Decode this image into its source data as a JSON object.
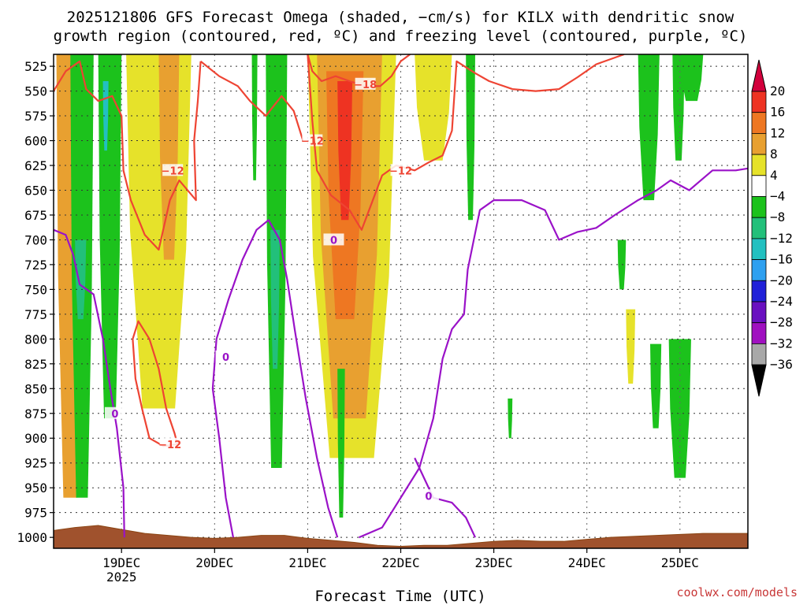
{
  "chart_data": {
    "type": "time-height",
    "title_line1": "2025121806 GFS Forecast Omega (shaded, −cm/s) for KILX with dendritic snow",
    "title_line2": "growth region (contoured, red, ºC) and freezing level (contoured, purple, ºC)",
    "xlabel": "Forecast Time (UTC)",
    "credit": "coolwx.com/models",
    "x_axis": {
      "unit": "day",
      "xlim": [
        18.27,
        25.73
      ],
      "ticks": [
        {
          "x": 19,
          "label": "19DEC",
          "sub": "2025"
        },
        {
          "x": 20,
          "label": "20DEC"
        },
        {
          "x": 21,
          "label": "21DEC"
        },
        {
          "x": 22,
          "label": "22DEC"
        },
        {
          "x": 23,
          "label": "23DEC"
        },
        {
          "x": 24,
          "label": "24DEC"
        },
        {
          "x": 25,
          "label": "25DEC"
        }
      ]
    },
    "y_axis": {
      "unit": "hPa",
      "ylim": [
        513,
        1011
      ],
      "ticks": [
        "525",
        "550",
        "575",
        "600",
        "625",
        "650",
        "675",
        "700",
        "725",
        "750",
        "775",
        "800",
        "825",
        "850",
        "875",
        "900",
        "925",
        "950",
        "975",
        "1000"
      ]
    },
    "colorbar": {
      "labels": [
        "20",
        "16",
        "12",
        "8",
        "4",
        "−4",
        "−8",
        "−12",
        "−16",
        "−20",
        "−24",
        "−28",
        "−32",
        "−36"
      ],
      "colors": [
        "#d2003c",
        "#ee3322",
        "#ee7722",
        "#e8a030",
        "#e6e22a",
        "#ffffff",
        "#1cc21c",
        "#22c07a",
        "#22c0c0",
        "#2ea0f0",
        "#2020d8",
        "#6a10c0",
        "#a010c0",
        "#a8a8a8",
        "#000000"
      ]
    },
    "omega_regions": [
      {
        "level": "8",
        "x": [
          18.3,
          18.6
        ],
        "p": [
          513,
          960
        ],
        "shape": "band"
      },
      {
        "level": "4",
        "x": [
          19.05,
          19.75
        ],
        "p": [
          513,
          870
        ],
        "shape": "band"
      },
      {
        "level": "8",
        "x": [
          19.4,
          19.62
        ],
        "p": [
          513,
          720
        ],
        "shape": "band"
      },
      {
        "level": "4",
        "x": [
          21.0,
          21.95
        ],
        "p": [
          513,
          920
        ],
        "shape": "band"
      },
      {
        "level": "8",
        "x": [
          21.1,
          21.8
        ],
        "p": [
          513,
          880
        ],
        "shape": "band"
      },
      {
        "level": "12",
        "x": [
          21.2,
          21.6
        ],
        "p": [
          530,
          780
        ],
        "shape": "band"
      },
      {
        "level": "16",
        "x": [
          21.32,
          21.48
        ],
        "p": [
          540,
          680
        ],
        "shape": "band"
      },
      {
        "level": "4",
        "x": [
          22.15,
          22.55
        ],
        "p": [
          513,
          620
        ],
        "shape": "band"
      },
      {
        "level": "4",
        "x": [
          24.42,
          24.52
        ],
        "p": [
          770,
          845
        ],
        "shape": "band"
      },
      {
        "level": "-8",
        "x": [
          18.45,
          18.7
        ],
        "p": [
          513,
          960
        ],
        "shape": "band"
      },
      {
        "level": "-8",
        "x": [
          18.75,
          19.0
        ],
        "p": [
          513,
          880
        ],
        "shape": "band"
      },
      {
        "level": "-12",
        "x": [
          18.5,
          18.62
        ],
        "p": [
          700,
          780
        ],
        "shape": "band"
      },
      {
        "level": "-16",
        "x": [
          18.8,
          18.86
        ],
        "p": [
          540,
          610
        ],
        "shape": "band"
      },
      {
        "level": "-8",
        "x": [
          20.55,
          20.78
        ],
        "p": [
          513,
          930
        ],
        "shape": "band"
      },
      {
        "level": "-12",
        "x": [
          20.6,
          20.7
        ],
        "p": [
          690,
          830
        ],
        "shape": "band"
      },
      {
        "level": "-8",
        "x": [
          21.32,
          21.4
        ],
        "p": [
          830,
          980
        ],
        "shape": "band"
      },
      {
        "level": "-8",
        "x": [
          20.4,
          20.46
        ],
        "p": [
          513,
          640
        ],
        "shape": "band"
      },
      {
        "level": "-8",
        "x": [
          22.7,
          22.8
        ],
        "p": [
          513,
          680
        ],
        "shape": "band"
      },
      {
        "level": "-8",
        "x": [
          23.15,
          23.2
        ],
        "p": [
          860,
          900
        ],
        "shape": "band"
      },
      {
        "level": "-8",
        "x": [
          24.33,
          24.42
        ],
        "p": [
          700,
          750
        ],
        "shape": "band"
      },
      {
        "level": "-8",
        "x": [
          24.55,
          24.78
        ],
        "p": [
          513,
          660
        ],
        "shape": "band"
      },
      {
        "level": "-8",
        "x": [
          24.92,
          25.05
        ],
        "p": [
          513,
          620
        ],
        "shape": "band"
      },
      {
        "level": "-8",
        "x": [
          25.0,
          25.25
        ],
        "p": [
          513,
          560
        ],
        "shape": "band"
      },
      {
        "level": "-8",
        "x": [
          24.68,
          24.8
        ],
        "p": [
          805,
          890
        ],
        "shape": "band"
      },
      {
        "level": "-8",
        "x": [
          24.88,
          25.12
        ],
        "p": [
          800,
          940
        ],
        "shape": "band"
      }
    ],
    "dgz_contours": [
      {
        "label": "−12",
        "label_pos": [
          19.55,
          630
        ],
        "points": [
          [
            18.27,
            550
          ],
          [
            18.4,
            530
          ],
          [
            18.55,
            520
          ],
          [
            18.62,
            548
          ],
          [
            18.75,
            560
          ],
          [
            18.9,
            555
          ],
          [
            19.0,
            575
          ],
          [
            19.02,
            630
          ],
          [
            19.1,
            660
          ],
          [
            19.25,
            695
          ],
          [
            19.4,
            710
          ],
          [
            19.52,
            660
          ],
          [
            19.62,
            640
          ],
          [
            19.8,
            660
          ],
          [
            19.78,
            600
          ],
          [
            19.82,
            560
          ],
          [
            19.85,
            520
          ]
        ]
      },
      {
        "label": "−12",
        "label_pos": [
          19.52,
          906
        ],
        "points": [
          [
            19.12,
            800
          ],
          [
            19.18,
            782
          ],
          [
            19.3,
            800
          ],
          [
            19.4,
            830
          ],
          [
            19.48,
            870
          ],
          [
            19.57,
            895
          ],
          [
            19.6,
            906
          ],
          [
            19.45,
            908
          ],
          [
            19.3,
            900
          ],
          [
            19.22,
            870
          ],
          [
            19.15,
            840
          ],
          [
            19.12,
            800
          ]
        ]
      },
      {
        "label": "−12",
        "label_pos": [
          21.05,
          600
        ],
        "points": [
          [
            19.85,
            520
          ],
          [
            20.05,
            535
          ],
          [
            20.25,
            545
          ],
          [
            20.38,
            560
          ],
          [
            20.55,
            575
          ],
          [
            20.72,
            555
          ],
          [
            20.85,
            570
          ],
          [
            20.95,
            600
          ]
        ]
      },
      {
        "label": "−18",
        "label_pos": [
          21.62,
          543
        ],
        "points": [
          [
            21.0,
            513
          ],
          [
            21.05,
            530
          ],
          [
            21.15,
            540
          ],
          [
            21.3,
            535
          ],
          [
            21.45,
            540
          ],
          [
            21.62,
            545
          ],
          [
            21.78,
            545
          ],
          [
            21.9,
            535
          ],
          [
            22.0,
            520
          ],
          [
            22.1,
            513
          ]
        ]
      },
      {
        "label": "−12",
        "label_pos": [
          22.0,
          630
        ],
        "points": [
          [
            21.0,
            513
          ],
          [
            21.05,
            580
          ],
          [
            21.1,
            630
          ],
          [
            21.25,
            655
          ],
          [
            21.45,
            670
          ],
          [
            21.58,
            690
          ],
          [
            21.68,
            665
          ],
          [
            21.8,
            635
          ],
          [
            21.95,
            625
          ],
          [
            22.15,
            630
          ],
          [
            22.3,
            622
          ],
          [
            22.45,
            615
          ],
          [
            22.55,
            590
          ],
          [
            22.6,
            520
          ],
          [
            22.8,
            532
          ],
          [
            22.95,
            540
          ],
          [
            23.2,
            548
          ],
          [
            23.45,
            550
          ],
          [
            23.7,
            548
          ],
          [
            23.9,
            536
          ],
          [
            24.1,
            523
          ],
          [
            24.4,
            513
          ]
        ]
      }
    ],
    "freezing_contours": [
      {
        "label": "0",
        "label_pos": [
          18.93,
          875
        ],
        "points": [
          [
            18.27,
            690
          ],
          [
            18.4,
            695
          ],
          [
            18.48,
            715
          ],
          [
            18.55,
            745
          ],
          [
            18.7,
            755
          ],
          [
            18.8,
            800
          ],
          [
            18.88,
            850
          ],
          [
            18.95,
            890
          ],
          [
            19.02,
            950
          ],
          [
            19.03,
            1000
          ]
        ]
      },
      {
        "label": "0",
        "label_pos": [
          20.12,
          818
        ],
        "points": [
          [
            20.2,
            1000
          ],
          [
            20.12,
            960
          ],
          [
            20.05,
            900
          ],
          [
            19.98,
            850
          ],
          [
            20.02,
            800
          ],
          [
            20.15,
            760
          ],
          [
            20.3,
            720
          ],
          [
            20.45,
            690
          ],
          [
            20.58,
            680
          ],
          [
            20.7,
            700
          ],
          [
            20.78,
            740
          ],
          [
            20.86,
            790
          ],
          [
            20.98,
            860
          ],
          [
            21.1,
            920
          ],
          [
            21.22,
            970
          ],
          [
            21.32,
            1000
          ]
        ]
      },
      {
        "label": "0",
        "label_pos": [
          21.28,
          700
        ],
        "points": [
          [
            21.55,
            1000
          ],
          [
            21.8,
            990
          ],
          [
            22.0,
            960
          ],
          [
            22.2,
            930
          ],
          [
            22.35,
            880
          ],
          [
            22.45,
            820
          ],
          [
            22.55,
            790
          ],
          [
            22.68,
            775
          ],
          [
            22.72,
            730
          ],
          [
            22.85,
            670
          ],
          [
            23.0,
            660
          ],
          [
            23.3,
            660
          ],
          [
            23.55,
            670
          ],
          [
            23.7,
            700
          ],
          [
            23.9,
            692
          ],
          [
            24.1,
            688
          ],
          [
            24.3,
            675
          ],
          [
            24.55,
            660
          ],
          [
            24.75,
            650
          ],
          [
            24.9,
            640
          ],
          [
            25.1,
            650
          ],
          [
            25.35,
            630
          ],
          [
            25.6,
            630
          ],
          [
            25.73,
            628
          ]
        ]
      },
      {
        "label": "0",
        "label_pos": [
          22.3,
          958
        ],
        "points": [
          [
            22.15,
            920
          ],
          [
            22.25,
            940
          ],
          [
            22.35,
            960
          ],
          [
            22.55,
            965
          ],
          [
            22.7,
            980
          ],
          [
            22.8,
            1000
          ]
        ]
      }
    ],
    "terrain_pressure_hPa": [
      [
        18.27,
        993
      ],
      [
        18.5,
        990
      ],
      [
        18.75,
        988
      ],
      [
        19.0,
        992
      ],
      [
        19.25,
        996
      ],
      [
        19.5,
        998
      ],
      [
        19.75,
        1000
      ],
      [
        20.0,
        1001
      ],
      [
        20.25,
        1000
      ],
      [
        20.5,
        998
      ],
      [
        20.75,
        998
      ],
      [
        21.0,
        1001
      ],
      [
        21.25,
        1003
      ],
      [
        21.5,
        1005
      ],
      [
        21.75,
        1008
      ],
      [
        22.0,
        1009
      ],
      [
        22.25,
        1008
      ],
      [
        22.5,
        1008
      ],
      [
        22.75,
        1006
      ],
      [
        23.0,
        1004
      ],
      [
        23.25,
        1003
      ],
      [
        23.5,
        1004
      ],
      [
        23.75,
        1004
      ],
      [
        24.0,
        1002
      ],
      [
        24.25,
        1000
      ],
      [
        24.5,
        999
      ],
      [
        24.75,
        998
      ],
      [
        25.0,
        997
      ],
      [
        25.25,
        996
      ],
      [
        25.5,
        996
      ],
      [
        25.73,
        996
      ]
    ]
  }
}
